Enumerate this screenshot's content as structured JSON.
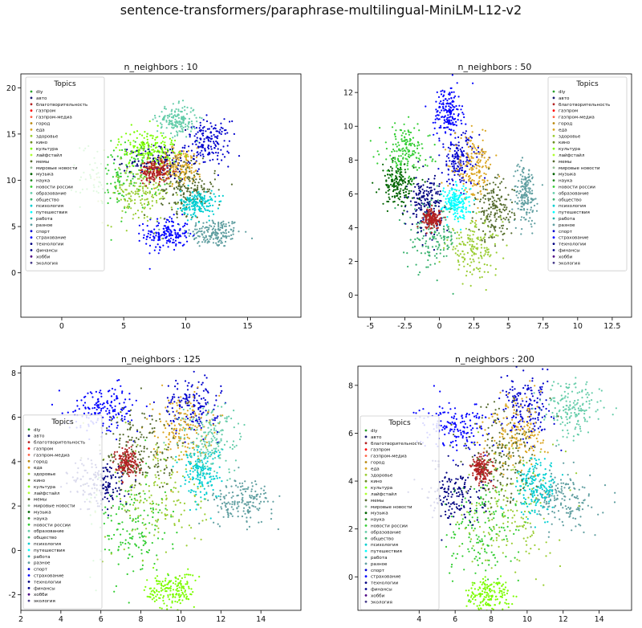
{
  "figure": {
    "title": "sentence-transformers/paraphrase-multilingual-MiniLM-L12-v2"
  },
  "legend_title": "Topics",
  "topics": [
    {
      "name": "diy",
      "color": "#2ca02c"
    },
    {
      "name": "авто",
      "color": "#191970"
    },
    {
      "name": "благотворительность",
      "color": "#b22222"
    },
    {
      "name": "газпром",
      "color": "#ff0000"
    },
    {
      "name": "газпром-медиа",
      "color": "#ff6347"
    },
    {
      "name": "город",
      "color": "#b8860b"
    },
    {
      "name": "еда",
      "color": "#daa520"
    },
    {
      "name": "здоровье",
      "color": "#9acd32"
    },
    {
      "name": "кино",
      "color": "#6b8e23"
    },
    {
      "name": "культура",
      "color": "#7cfc00"
    },
    {
      "name": "лайфстайл",
      "color": "#adff2f"
    },
    {
      "name": "мемы",
      "color": "#556b2f"
    },
    {
      "name": "мировые новости",
      "color": "#8fbc8f"
    },
    {
      "name": "музыка",
      "color": "#006400"
    },
    {
      "name": "наука",
      "color": "#228b22"
    },
    {
      "name": "новости россии",
      "color": "#32cd32"
    },
    {
      "name": "образование",
      "color": "#66cdaa"
    },
    {
      "name": "общество",
      "color": "#3cb371"
    },
    {
      "name": "психология",
      "color": "#00ced1"
    },
    {
      "name": "путешествия",
      "color": "#00ffff"
    },
    {
      "name": "работа",
      "color": "#20b2aa"
    },
    {
      "name": "разное",
      "color": "#5f9ea0"
    },
    {
      "name": "спорт",
      "color": "#0000cd"
    },
    {
      "name": "страхование",
      "color": "#0000ff"
    },
    {
      "name": "технологии",
      "color": "#000080"
    },
    {
      "name": "финансы",
      "color": "#00008b"
    },
    {
      "name": "хобби",
      "color": "#4b0082"
    },
    {
      "name": "экология",
      "color": "#483d8b"
    }
  ],
  "chart_data": [
    {
      "type": "scatter",
      "title": "n_neighbors : 10",
      "xlim": [
        -3.3,
        19.3
      ],
      "ylim": [
        -4.8,
        21.5
      ],
      "xticks": [
        0,
        5,
        10,
        15
      ],
      "yticks": [
        0,
        5,
        10,
        15,
        20
      ],
      "legend_position": "upper-left",
      "clusters": [
        {
          "topic": "разное",
          "cx": 12.3,
          "cy": 4.3,
          "sx": 1.1,
          "sy": 0.8
        },
        {
          "topic": "страхование",
          "cx": 8.5,
          "cy": 4.2,
          "sx": 0.9,
          "sy": 0.9
        },
        {
          "topic": "спорт",
          "cx": 11.8,
          "cy": 14.0,
          "sx": 0.9,
          "sy": 1.2
        },
        {
          "topic": "новости россии",
          "cx": 4.8,
          "cy": 10.5,
          "sx": 1.6,
          "sy": 1.8
        },
        {
          "topic": "здоровье",
          "cx": 6.2,
          "cy": 8.5,
          "sx": 1.4,
          "sy": 1.6
        },
        {
          "topic": "технологии",
          "cx": 8.0,
          "cy": 12.0,
          "sx": 1.2,
          "sy": 1.0
        },
        {
          "topic": "еда",
          "cx": 9.5,
          "cy": 11.5,
          "sx": 1.0,
          "sy": 1.0
        },
        {
          "topic": "мемы",
          "cx": 10.2,
          "cy": 9.0,
          "sx": 1.1,
          "sy": 1.3
        },
        {
          "topic": "образование",
          "cx": 9.3,
          "cy": 16.5,
          "sx": 0.8,
          "sy": 0.8
        },
        {
          "topic": "благотворительность",
          "cx": 7.5,
          "cy": 11.0,
          "sx": 0.6,
          "sy": 0.6
        },
        {
          "topic": "культура",
          "cx": 7.0,
          "cy": 13.5,
          "sx": 1.2,
          "sy": 1.0
        },
        {
          "topic": "психология",
          "cx": 11.0,
          "cy": 7.5,
          "sx": 0.7,
          "sy": 0.7
        }
      ]
    },
    {
      "type": "scatter",
      "title": "n_neighbors : 50",
      "xlim": [
        -5.9,
        13.9
      ],
      "ylim": [
        -1.3,
        13.1
      ],
      "xticks": [
        -5.0,
        -2.5,
        0.0,
        2.5,
        5.0,
        7.5,
        10.0,
        12.5
      ],
      "yticks": [
        0,
        2,
        4,
        6,
        8,
        10,
        12
      ],
      "legend_position": "upper-right",
      "clusters": [
        {
          "topic": "разное",
          "cx": 6.2,
          "cy": 6.0,
          "sx": 0.45,
          "sy": 0.9
        },
        {
          "topic": "страхование",
          "cx": 0.6,
          "cy": 10.8,
          "sx": 0.5,
          "sy": 0.8
        },
        {
          "topic": "спорт",
          "cx": 1.5,
          "cy": 8.0,
          "sx": 0.7,
          "sy": 0.8
        },
        {
          "topic": "новости россии",
          "cx": -2.5,
          "cy": 8.5,
          "sx": 0.9,
          "sy": 0.8
        },
        {
          "topic": "здоровье",
          "cx": 2.5,
          "cy": 2.8,
          "sx": 1.0,
          "sy": 0.8
        },
        {
          "topic": "общество",
          "cx": -0.5,
          "cy": 3.5,
          "sx": 0.9,
          "sy": 1.0
        },
        {
          "topic": "еда",
          "cx": 2.5,
          "cy": 7.5,
          "sx": 0.7,
          "sy": 0.9
        },
        {
          "topic": "технологии",
          "cx": -1.0,
          "cy": 5.5,
          "sx": 0.6,
          "sy": 0.8
        },
        {
          "topic": "путешествия",
          "cx": 1.2,
          "cy": 5.5,
          "sx": 0.5,
          "sy": 0.5
        },
        {
          "topic": "благотворительность",
          "cx": -0.5,
          "cy": 4.5,
          "sx": 0.3,
          "sy": 0.3
        },
        {
          "topic": "мемы",
          "cx": 4.0,
          "cy": 5.0,
          "sx": 0.7,
          "sy": 0.9
        },
        {
          "topic": "музыка",
          "cx": -3.0,
          "cy": 6.5,
          "sx": 0.6,
          "sy": 0.6
        }
      ]
    },
    {
      "type": "scatter",
      "title": "n_neighbors : 125",
      "xlim": [
        2.0,
        16.0
      ],
      "ylim": [
        -2.7,
        8.3
      ],
      "xticks": [
        2,
        4,
        6,
        8,
        10,
        12,
        14
      ],
      "yticks": [
        -2,
        0,
        2,
        4,
        6,
        8
      ],
      "legend_position": "lower-left",
      "clusters": [
        {
          "topic": "разное",
          "cx": 13.0,
          "cy": 2.2,
          "sx": 0.8,
          "sy": 0.5
        },
        {
          "topic": "страхование",
          "cx": 6.2,
          "cy": 6.4,
          "sx": 0.9,
          "sy": 0.5
        },
        {
          "topic": "спорт",
          "cx": 10.5,
          "cy": 6.5,
          "sx": 0.7,
          "sy": 0.6
        },
        {
          "topic": "новости россии",
          "cx": 7.5,
          "cy": 1.0,
          "sx": 1.0,
          "sy": 1.2
        },
        {
          "topic": "здоровье",
          "cx": 9.0,
          "cy": 2.5,
          "sx": 1.2,
          "sy": 1.5
        },
        {
          "topic": "технологии",
          "cx": 6.0,
          "cy": 3.0,
          "sx": 0.7,
          "sy": 0.6
        },
        {
          "topic": "еда",
          "cx": 10.0,
          "cy": 5.5,
          "sx": 0.7,
          "sy": 0.8
        },
        {
          "topic": "благотворительность",
          "cx": 7.3,
          "cy": 4.0,
          "sx": 0.3,
          "sy": 0.3
        },
        {
          "topic": "психология",
          "cx": 11.0,
          "cy": 3.5,
          "sx": 0.5,
          "sy": 0.6
        },
        {
          "topic": "образование",
          "cx": 11.5,
          "cy": 5.0,
          "sx": 0.8,
          "sy": 0.8
        },
        {
          "topic": "культура",
          "cx": 9.5,
          "cy": -1.8,
          "sx": 0.6,
          "sy": 0.4
        },
        {
          "topic": "мемы",
          "cx": 8.0,
          "cy": 4.5,
          "sx": 1.0,
          "sy": 1.0
        }
      ]
    },
    {
      "type": "scatter",
      "title": "n_neighbors : 200",
      "xlim": [
        0.6,
        15.8
      ],
      "ylim": [
        -1.4,
        8.8
      ],
      "xticks": [
        4,
        6,
        8,
        10,
        12,
        14
      ],
      "yticks": [
        0,
        2,
        4,
        6,
        8
      ],
      "legend_position": "center-left",
      "clusters": [
        {
          "topic": "разное",
          "cx": 12.0,
          "cy": 3.2,
          "sx": 0.9,
          "sy": 0.6
        },
        {
          "topic": "страхование",
          "cx": 6.0,
          "cy": 6.3,
          "sx": 1.0,
          "sy": 0.5
        },
        {
          "topic": "спорт",
          "cx": 10.0,
          "cy": 7.0,
          "sx": 0.7,
          "sy": 0.6
        },
        {
          "topic": "новости россии",
          "cx": 7.5,
          "cy": 2.0,
          "sx": 1.0,
          "sy": 1.2
        },
        {
          "topic": "здоровье",
          "cx": 9.0,
          "cy": 2.8,
          "sx": 1.2,
          "sy": 1.4
        },
        {
          "topic": "технологии",
          "cx": 6.0,
          "cy": 3.5,
          "sx": 0.8,
          "sy": 0.6
        },
        {
          "topic": "еда",
          "cx": 9.5,
          "cy": 6.0,
          "sx": 0.8,
          "sy": 0.8
        },
        {
          "topic": "благотворительность",
          "cx": 7.5,
          "cy": 4.5,
          "sx": 0.3,
          "sy": 0.3
        },
        {
          "topic": "психология",
          "cx": 10.5,
          "cy": 3.8,
          "sx": 0.6,
          "sy": 0.6
        },
        {
          "topic": "образование",
          "cx": 12.5,
          "cy": 7.0,
          "sx": 0.8,
          "sy": 0.6
        },
        {
          "topic": "культура",
          "cx": 7.8,
          "cy": -0.8,
          "sx": 0.6,
          "sy": 0.4
        },
        {
          "topic": "мемы",
          "cx": 8.5,
          "cy": 5.0,
          "sx": 1.0,
          "sy": 1.0
        }
      ]
    }
  ]
}
